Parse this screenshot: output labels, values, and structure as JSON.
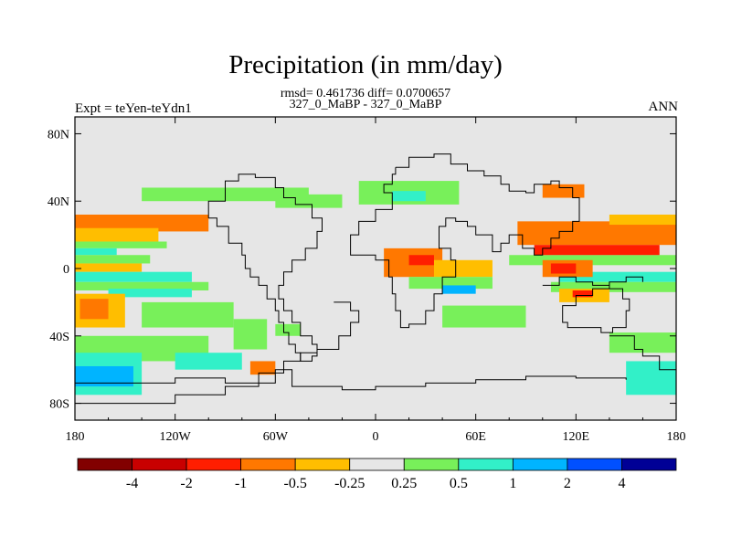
{
  "figure": {
    "title": "Precipitation (in mm/day)",
    "stats_line": "rmsd= 0.461736 diff= 0.0700657",
    "subtitle": "327_0_MaBP - 327_0_MaBP",
    "left_label": "Expt = teYen-teYdn1",
    "right_label": "ANN"
  },
  "chart_data": {
    "type": "heatmap",
    "title": "Precipitation (in mm/day)",
    "xlabel": "",
    "ylabel": "",
    "xlim": [
      -180,
      180
    ],
    "ylim": [
      -90,
      90
    ],
    "x_ticks": [
      {
        "value": -180,
        "label": "180"
      },
      {
        "value": -120,
        "label": "120W"
      },
      {
        "value": -60,
        "label": "60W"
      },
      {
        "value": 0,
        "label": "0"
      },
      {
        "value": 60,
        "label": "60E"
      },
      {
        "value": 120,
        "label": "120E"
      },
      {
        "value": 180,
        "label": "180"
      }
    ],
    "y_ticks": [
      {
        "value": 80,
        "label": "80N"
      },
      {
        "value": 40,
        "label": "40N"
      },
      {
        "value": 0,
        "label": "0"
      },
      {
        "value": -40,
        "label": "40S"
      },
      {
        "value": -80,
        "label": "80S"
      }
    ],
    "background_color": "#e6e6e6",
    "colorbar": {
      "labels": [
        "-4",
        "-2",
        "-1",
        "-0.5",
        "-0.25",
        "0.25",
        "0.5",
        "1",
        "2",
        "4"
      ],
      "colors": [
        "#820000",
        "#c80000",
        "#ff1e00",
        "#ff7800",
        "#ffbe00",
        "#e6e6e6",
        "#78f05a",
        "#32f0c8",
        "#00b4ff",
        "#0050ff",
        "#000096"
      ]
    },
    "fields": [
      {
        "class": 3,
        "lon": [
          -180,
          -100
        ],
        "lat": [
          22,
          32
        ]
      },
      {
        "class": 4,
        "lon": [
          -180,
          -130
        ],
        "lat": [
          16,
          24
        ]
      },
      {
        "class": 6,
        "lon": [
          -180,
          -125
        ],
        "lat": [
          12,
          16
        ]
      },
      {
        "class": 7,
        "lon": [
          -180,
          -155
        ],
        "lat": [
          8,
          12
        ]
      },
      {
        "class": 6,
        "lon": [
          -180,
          -135
        ],
        "lat": [
          3,
          8
        ]
      },
      {
        "class": 4,
        "lon": [
          -180,
          -140
        ],
        "lat": [
          -2,
          3
        ]
      },
      {
        "class": 7,
        "lon": [
          -180,
          -110
        ],
        "lat": [
          -8,
          -2
        ]
      },
      {
        "class": 6,
        "lon": [
          -180,
          -100
        ],
        "lat": [
          -13,
          -8
        ]
      },
      {
        "class": 7,
        "lon": [
          -160,
          -110
        ],
        "lat": [
          -17,
          -12
        ]
      },
      {
        "class": 4,
        "lon": [
          -180,
          -150
        ],
        "lat": [
          -35,
          -15
        ]
      },
      {
        "class": 3,
        "lon": [
          -177,
          -160
        ],
        "lat": [
          -30,
          -18
        ]
      },
      {
        "class": 6,
        "lon": [
          -140,
          -85
        ],
        "lat": [
          -35,
          -20
        ]
      },
      {
        "class": 6,
        "lon": [
          -180,
          -100
        ],
        "lat": [
          -55,
          -40
        ]
      },
      {
        "class": 7,
        "lon": [
          -180,
          -140
        ],
        "lat": [
          -75,
          -50
        ]
      },
      {
        "class": 8,
        "lon": [
          -180,
          -145
        ],
        "lat": [
          -70,
          -58
        ]
      },
      {
        "class": 7,
        "lon": [
          -120,
          -80
        ],
        "lat": [
          -60,
          -50
        ]
      },
      {
        "class": 6,
        "lon": [
          -140,
          -40
        ],
        "lat": [
          40,
          48
        ]
      },
      {
        "class": 6,
        "lon": [
          -60,
          -20
        ],
        "lat": [
          36,
          44
        ]
      },
      {
        "class": 6,
        "lon": [
          -85,
          -65
        ],
        "lat": [
          -48,
          -30
        ]
      },
      {
        "class": 3,
        "lon": [
          -75,
          -60
        ],
        "lat": [
          -63,
          -55
        ]
      },
      {
        "class": 6,
        "lon": [
          -60,
          -45
        ],
        "lat": [
          -40,
          -33
        ]
      },
      {
        "class": 6,
        "lon": [
          -10,
          50
        ],
        "lat": [
          38,
          52
        ]
      },
      {
        "class": 7,
        "lon": [
          10,
          30
        ],
        "lat": [
          40,
          46
        ]
      },
      {
        "class": 3,
        "lon": [
          5,
          40
        ],
        "lat": [
          -5,
          12
        ]
      },
      {
        "class": 2,
        "lon": [
          20,
          35
        ],
        "lat": [
          2,
          8
        ]
      },
      {
        "class": 4,
        "lon": [
          35,
          70
        ],
        "lat": [
          -5,
          5
        ]
      },
      {
        "class": 6,
        "lon": [
          20,
          70
        ],
        "lat": [
          -12,
          -5
        ]
      },
      {
        "class": 8,
        "lon": [
          40,
          60
        ],
        "lat": [
          -15,
          -10
        ]
      },
      {
        "class": 6,
        "lon": [
          40,
          90
        ],
        "lat": [
          -35,
          -22
        ]
      },
      {
        "class": 6,
        "lon": [
          80,
          180
        ],
        "lat": [
          2,
          8
        ]
      },
      {
        "class": 3,
        "lon": [
          85,
          180
        ],
        "lat": [
          14,
          28
        ]
      },
      {
        "class": 4,
        "lon": [
          140,
          180
        ],
        "lat": [
          26,
          32
        ]
      },
      {
        "class": 2,
        "lon": [
          95,
          170
        ],
        "lat": [
          8,
          14
        ]
      },
      {
        "class": 7,
        "lon": [
          110,
          180
        ],
        "lat": [
          -8,
          -2
        ]
      },
      {
        "class": 6,
        "lon": [
          105,
          180
        ],
        "lat": [
          -14,
          -8
        ]
      },
      {
        "class": 3,
        "lon": [
          100,
          130
        ],
        "lat": [
          -5,
          5
        ]
      },
      {
        "class": 2,
        "lon": [
          105,
          120
        ],
        "lat": [
          -3,
          3
        ]
      },
      {
        "class": 4,
        "lon": [
          110,
          140
        ],
        "lat": [
          -20,
          -12
        ]
      },
      {
        "class": 2,
        "lon": [
          118,
          130
        ],
        "lat": [
          -17,
          -13
        ]
      },
      {
        "class": 3,
        "lon": [
          100,
          125
        ],
        "lat": [
          42,
          50
        ]
      },
      {
        "class": 6,
        "lon": [
          140,
          180
        ],
        "lat": [
          -50,
          -38
        ]
      },
      {
        "class": 7,
        "lon": [
          150,
          180
        ],
        "lat": [
          -75,
          -55
        ]
      }
    ]
  }
}
